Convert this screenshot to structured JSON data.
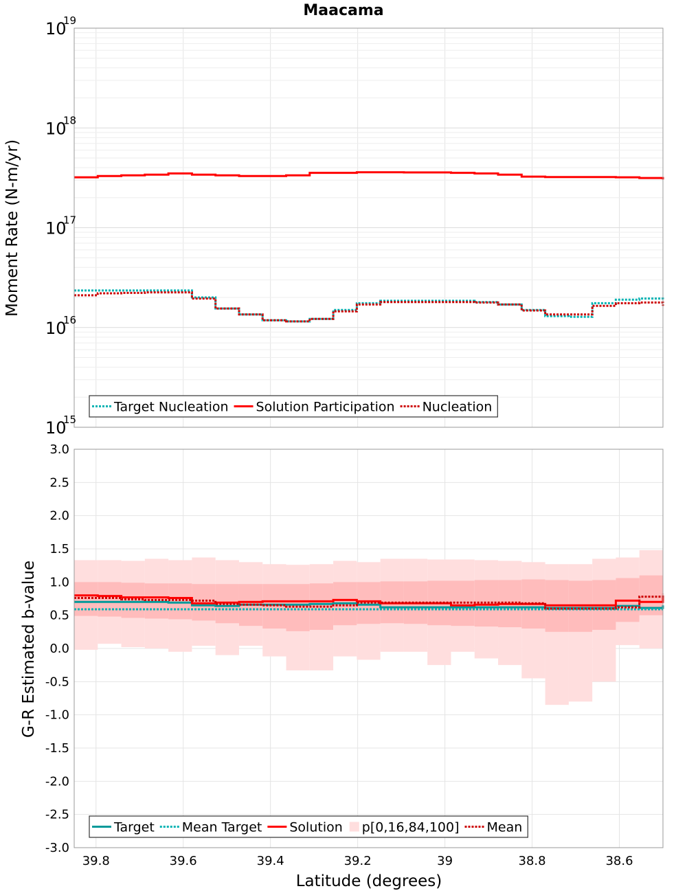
{
  "chart_data": [
    {
      "type": "line",
      "title": "Maacama",
      "xlabel": "",
      "ylabel": "Moment Rate (N-m/yr)",
      "yscale": "log",
      "ylim": [
        1000000000000000.0,
        1e+19
      ],
      "xlim": [
        39.85,
        38.5
      ],
      "ytick_labels": [
        {
          "base": "10",
          "exp": "15"
        },
        {
          "base": "10",
          "exp": "16"
        },
        {
          "base": "10",
          "exp": "17"
        },
        {
          "base": "10",
          "exp": "18"
        },
        {
          "base": "10",
          "exp": "19"
        }
      ],
      "bin_edges": [
        39.85,
        39.796,
        39.742,
        39.688,
        39.634,
        39.58,
        39.526,
        39.472,
        39.418,
        39.364,
        39.31,
        39.256,
        39.202,
        39.148,
        39.094,
        39.04,
        38.986,
        38.932,
        38.878,
        38.824,
        38.77,
        38.716,
        38.662,
        38.608,
        38.554,
        38.5
      ],
      "grid": true,
      "legend_position": "bottom-left",
      "series": [
        {
          "name": "Target Nucleation",
          "style": "dotted",
          "color": "#00b3b3",
          "values": [
            2.35e+16,
            2.35e+16,
            2.35e+16,
            2.35e+16,
            2.35e+16,
            2e+16,
            1.55e+16,
            1.35e+16,
            1.18e+16,
            1.15e+16,
            1.22e+16,
            1.5e+16,
            1.75e+16,
            1.85e+16,
            1.85e+16,
            1.85e+16,
            1.85e+16,
            1.8e+16,
            1.7e+16,
            1.5e+16,
            1.3e+16,
            1.28e+16,
            1.75e+16,
            1.9e+16,
            1.95e+16,
            1.85e+16
          ]
        },
        {
          "name": "Solution Participation",
          "style": "solid",
          "color": "#ff0000",
          "values": [
            3.2e+17,
            3.3e+17,
            3.35e+17,
            3.4e+17,
            3.5e+17,
            3.4e+17,
            3.35e+17,
            3.3e+17,
            3.3e+17,
            3.35e+17,
            3.55e+17,
            3.55e+17,
            3.6e+17,
            3.6e+17,
            3.58e+17,
            3.58e+17,
            3.55e+17,
            3.5e+17,
            3.4e+17,
            3.25e+17,
            3.22e+17,
            3.22e+17,
            3.22e+17,
            3.2e+17,
            3.15e+17,
            3.05e+17
          ]
        },
        {
          "name": "Nucleation",
          "style": "dotted",
          "color": "#cc0000",
          "values": [
            2.1e+16,
            2.2e+16,
            2.22e+16,
            2.25e+16,
            2.25e+16,
            1.95e+16,
            1.55e+16,
            1.35e+16,
            1.18e+16,
            1.15e+16,
            1.22e+16,
            1.45e+16,
            1.7e+16,
            1.8e+16,
            1.8e+16,
            1.8e+16,
            1.8e+16,
            1.78e+16,
            1.7e+16,
            1.48e+16,
            1.35e+16,
            1.35e+16,
            1.65e+16,
            1.75e+16,
            1.78e+16,
            1.65e+16
          ]
        }
      ]
    },
    {
      "type": "line",
      "title": "",
      "xlabel": "Latitude (degrees)",
      "ylabel": "G-R Estimated b-value",
      "ylim": [
        -3.0,
        3.0
      ],
      "xlim": [
        39.85,
        38.5
      ],
      "ytick_labels": [
        "3.0",
        "2.5",
        "2.0",
        "1.5",
        "1.0",
        "0.5",
        "0.0",
        "-0.5",
        "-1.0",
        "-1.5",
        "-2.0",
        "-2.5",
        "-3.0"
      ],
      "xtick_labels": [
        "39.8",
        "39.6",
        "39.4",
        "39.2",
        "39",
        "38.8",
        "38.6"
      ],
      "bin_edges": [
        39.85,
        39.796,
        39.742,
        39.688,
        39.634,
        39.58,
        39.526,
        39.472,
        39.418,
        39.364,
        39.31,
        39.256,
        39.202,
        39.148,
        39.094,
        39.04,
        38.986,
        38.932,
        38.878,
        38.824,
        38.77,
        38.716,
        38.662,
        38.608,
        38.554,
        38.5
      ],
      "grid": true,
      "legend_position": "bottom-left",
      "band": {
        "name": "p[0,16,84,100]",
        "color": "#ff9999",
        "p0": [
          -0.02,
          0.07,
          0.02,
          0.0,
          -0.05,
          0.04,
          -0.1,
          0.04,
          -0.12,
          -0.33,
          -0.33,
          -0.12,
          -0.17,
          -0.05,
          -0.05,
          -0.25,
          -0.05,
          -0.15,
          -0.25,
          -0.45,
          -0.85,
          -0.8,
          -0.5,
          0.05,
          0.0,
          -0.57
        ],
        "p16": [
          0.49,
          0.48,
          0.46,
          0.45,
          0.44,
          0.42,
          0.38,
          0.34,
          0.3,
          0.26,
          0.28,
          0.35,
          0.37,
          0.38,
          0.37,
          0.35,
          0.34,
          0.33,
          0.32,
          0.3,
          0.25,
          0.25,
          0.28,
          0.4,
          0.5,
          0.55
        ],
        "p84": [
          1.0,
          1.0,
          0.99,
          0.98,
          0.98,
          0.97,
          0.97,
          0.97,
          0.97,
          0.97,
          0.98,
          1.0,
          1.0,
          1.01,
          1.01,
          1.02,
          1.02,
          1.03,
          1.03,
          1.04,
          1.03,
          1.02,
          1.03,
          1.06,
          1.1,
          1.12
        ],
        "p100": [
          1.33,
          1.33,
          1.32,
          1.35,
          1.33,
          1.37,
          1.33,
          1.3,
          1.27,
          1.26,
          1.27,
          1.32,
          1.3,
          1.35,
          1.35,
          1.34,
          1.34,
          1.33,
          1.32,
          1.3,
          1.27,
          1.27,
          1.35,
          1.37,
          1.48,
          1.38
        ]
      },
      "series": [
        {
          "name": "Target",
          "style": "solid",
          "color": "#009999",
          "values": [
            0.7,
            0.7,
            0.7,
            0.7,
            0.69,
            0.65,
            0.64,
            0.66,
            0.66,
            0.66,
            0.67,
            0.68,
            0.66,
            0.62,
            0.62,
            0.62,
            0.62,
            0.62,
            0.62,
            0.62,
            0.61,
            0.61,
            0.61,
            0.64,
            0.61,
            0.65
          ]
        },
        {
          "name": "Mean Target",
          "style": "dotted",
          "color": "#00b3b3",
          "values": [
            0.59,
            0.59,
            0.59,
            0.59,
            0.59,
            0.59,
            0.59,
            0.59,
            0.59,
            0.59,
            0.59,
            0.59,
            0.59,
            0.59,
            0.59,
            0.59,
            0.59,
            0.59,
            0.59,
            0.59,
            0.59,
            0.59,
            0.59,
            0.59,
            0.59,
            0.59
          ]
        },
        {
          "name": "Solution",
          "style": "solid",
          "color": "#ff0000",
          "values": [
            0.8,
            0.79,
            0.77,
            0.77,
            0.76,
            0.68,
            0.69,
            0.7,
            0.71,
            0.71,
            0.71,
            0.73,
            0.71,
            0.68,
            0.68,
            0.68,
            0.65,
            0.66,
            0.67,
            0.67,
            0.65,
            0.65,
            0.65,
            0.72,
            0.7,
            0.8
          ]
        },
        {
          "name": "Mean",
          "style": "dotted",
          "color": "#cc0000",
          "values": [
            0.76,
            0.76,
            0.74,
            0.73,
            0.73,
            0.72,
            0.67,
            0.66,
            0.65,
            0.63,
            0.63,
            0.65,
            0.69,
            0.69,
            0.69,
            0.69,
            0.69,
            0.69,
            0.69,
            0.68,
            0.6,
            0.6,
            0.6,
            0.62,
            0.78,
            0.82
          ]
        }
      ]
    }
  ]
}
